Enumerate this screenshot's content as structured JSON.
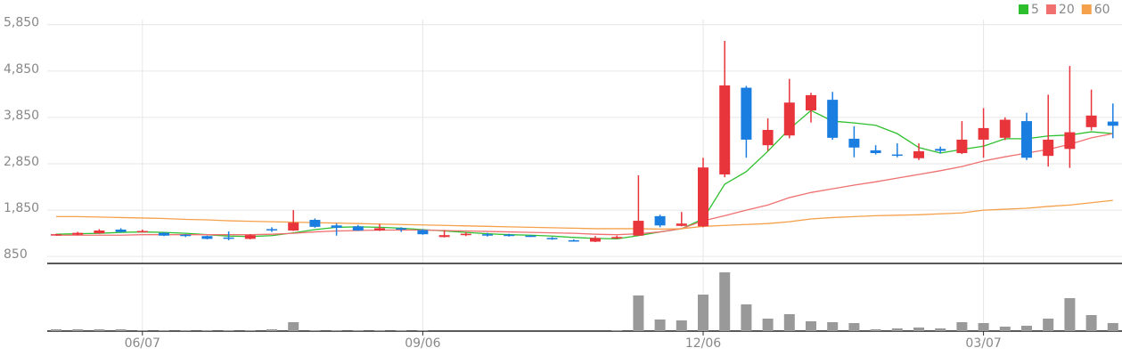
{
  "chart_data": {
    "type": "candlestick",
    "categories": [
      null,
      null,
      null,
      null,
      "06/07",
      null,
      null,
      null,
      null,
      null,
      null,
      null,
      null,
      null,
      null,
      null,
      null,
      "09/06",
      null,
      null,
      null,
      null,
      null,
      null,
      null,
      null,
      null,
      null,
      null,
      null,
      "12/06",
      null,
      null,
      null,
      null,
      null,
      null,
      null,
      null,
      null,
      null,
      null,
      null,
      "03/07",
      null,
      null,
      null,
      null,
      null,
      null
    ],
    "open": [
      1310,
      1320,
      1350,
      1430,
      1380,
      1360,
      1320,
      1290,
      1260,
      1230,
      1440,
      1410,
      1640,
      1520,
      1500,
      1410,
      1460,
      1420,
      1270,
      1310,
      1330,
      1320,
      1300,
      1250,
      1200,
      1170,
      1240,
      1300,
      1720,
      1510,
      1500,
      2620,
      4490,
      3250,
      3460,
      4000,
      4230,
      3390,
      3140,
      3050,
      2970,
      3170,
      3080,
      3370,
      3410,
      3770,
      3020,
      3170,
      3640,
      3760
    ],
    "high": [
      1340,
      1380,
      1440,
      1460,
      1430,
      1370,
      1330,
      1300,
      1390,
      1330,
      1480,
      1850,
      1670,
      1560,
      1530,
      1550,
      1480,
      1440,
      1420,
      1370,
      1360,
      1340,
      1310,
      1270,
      1220,
      1290,
      1300,
      2600,
      1750,
      1810,
      2980,
      5500,
      4530,
      3830,
      4680,
      4380,
      4400,
      3660,
      3250,
      3290,
      3290,
      3220,
      3770,
      4050,
      3850,
      3950,
      4340,
      4960,
      4450,
      4150
    ],
    "low": [
      1300,
      1310,
      1340,
      1370,
      1370,
      1290,
      1270,
      1220,
      1200,
      1220,
      1380,
      1400,
      1470,
      1300,
      1400,
      1400,
      1380,
      1320,
      1260,
      1290,
      1280,
      1280,
      1270,
      1210,
      1170,
      1160,
      1230,
      1300,
      1480,
      1500,
      1480,
      2560,
      2980,
      3130,
      3400,
      3740,
      3370,
      2990,
      3050,
      2990,
      2930,
      3070,
      3060,
      2980,
      3360,
      2930,
      2790,
      2760,
      3570,
      3400
    ],
    "close": [
      1330,
      1360,
      1410,
      1380,
      1400,
      1300,
      1290,
      1230,
      1240,
      1310,
      1420,
      1580,
      1490,
      1470,
      1410,
      1460,
      1430,
      1330,
      1310,
      1340,
      1300,
      1300,
      1280,
      1230,
      1180,
      1250,
      1270,
      1620,
      1520,
      1560,
      2770,
      4540,
      3370,
      3580,
      4170,
      4330,
      3410,
      3200,
      3080,
      3030,
      3120,
      3130,
      3370,
      3620,
      3800,
      2980,
      3370,
      3530,
      3890,
      3670
    ],
    "up_color": "#e8343b",
    "down_color": "#1a7de0",
    "series": [
      {
        "name": "5",
        "color": "#2dbf2d",
        "values": [
          1330,
          1340,
          1350,
          1370,
          1380,
          1370,
          1350,
          1320,
          1290,
          1280,
          1300,
          1360,
          1430,
          1480,
          1490,
          1480,
          1460,
          1430,
          1400,
          1370,
          1340,
          1320,
          1310,
          1290,
          1260,
          1240,
          1230,
          1300,
          1380,
          1450,
          1660,
          2410,
          2680,
          3120,
          3600,
          4000,
          3770,
          3730,
          3680,
          3500,
          3200,
          3080,
          3160,
          3230,
          3390,
          3390,
          3450,
          3470,
          3540,
          3500
        ]
      },
      {
        "name": "20",
        "color": "#f07070",
        "values": [
          1310,
          1310,
          1310,
          1310,
          1320,
          1320,
          1320,
          1320,
          1320,
          1320,
          1330,
          1350,
          1380,
          1400,
          1410,
          1420,
          1420,
          1420,
          1410,
          1400,
          1390,
          1380,
          1370,
          1360,
          1350,
          1330,
          1320,
          1340,
          1380,
          1450,
          1620,
          1730,
          1850,
          1960,
          2120,
          2230,
          2310,
          2390,
          2460,
          2540,
          2620,
          2700,
          2790,
          2910,
          3000,
          3080,
          3160,
          3270,
          3410,
          3500
        ]
      },
      {
        "name": "60",
        "color": "#f5a04a",
        "values": [
          1710,
          1710,
          1700,
          1690,
          1680,
          1670,
          1650,
          1640,
          1620,
          1610,
          1600,
          1590,
          1580,
          1570,
          1560,
          1550,
          1540,
          1530,
          1520,
          1510,
          1500,
          1490,
          1480,
          1470,
          1460,
          1450,
          1450,
          1450,
          1440,
          1450,
          1500,
          1520,
          1540,
          1560,
          1600,
          1660,
          1690,
          1710,
          1730,
          1740,
          1750,
          1770,
          1790,
          1850,
          1870,
          1890,
          1930,
          1960,
          2010,
          2060
        ]
      }
    ],
    "ylim": [
      700,
      5960
    ],
    "yticks": [
      {
        "value": 5850,
        "label": "5,850"
      },
      {
        "value": 4850,
        "label": "4,850"
      },
      {
        "value": 3850,
        "label": "3,850"
      },
      {
        "value": 2850,
        "label": "2,850"
      },
      {
        "value": 1850,
        "label": "1,850"
      },
      850
    ],
    "grid": true,
    "volume": {
      "color": "#999999",
      "ylim": [
        0,
        72
      ],
      "values": [
        2,
        2,
        2,
        2,
        1,
        1,
        1,
        1,
        1,
        1,
        2,
        10,
        1,
        1,
        1,
        1,
        1,
        1,
        0,
        0,
        0,
        0,
        0,
        0,
        0,
        0,
        1,
        40,
        13,
        12,
        41,
        66,
        30,
        14,
        19,
        11,
        10,
        9,
        2,
        3,
        4,
        3,
        10,
        9,
        5,
        6,
        14,
        37,
        18,
        9
      ]
    }
  }
}
